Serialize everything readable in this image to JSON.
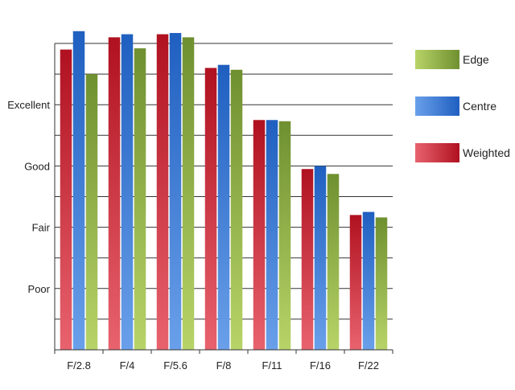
{
  "chart_data": {
    "type": "bar",
    "categories": [
      "F/2.8",
      "F/4",
      "F/5.6",
      "F/8",
      "F/11",
      "F/16",
      "F/22"
    ],
    "series": [
      {
        "name": "Weighted",
        "values": [
          4.9,
          5.1,
          5.15,
          4.6,
          3.75,
          2.95,
          2.2
        ],
        "color_light": "#e8636e",
        "color_dark": "#b01120"
      },
      {
        "name": "Centre",
        "values": [
          5.2,
          5.15,
          5.17,
          4.65,
          3.75,
          3.0,
          2.25
        ],
        "color_light": "#6aa0ea",
        "color_dark": "#1f5fc0"
      },
      {
        "name": "Edge",
        "values": [
          4.5,
          4.92,
          5.1,
          4.57,
          3.73,
          2.87,
          2.16
        ],
        "color_light": "#b8d468",
        "color_dark": "#6f9030"
      }
    ],
    "y_ticks": [
      {
        "value": 1,
        "label": "Poor"
      },
      {
        "value": 2,
        "label": "Fair"
      },
      {
        "value": 3,
        "label": "Good"
      },
      {
        "value": 4,
        "label": "Excellent"
      }
    ],
    "ylim": [
      0,
      5
    ],
    "grid_step": 0.5,
    "grid": true,
    "legend_order": [
      "Edge",
      "Centre",
      "Weighted"
    ],
    "legend_position": "right"
  }
}
